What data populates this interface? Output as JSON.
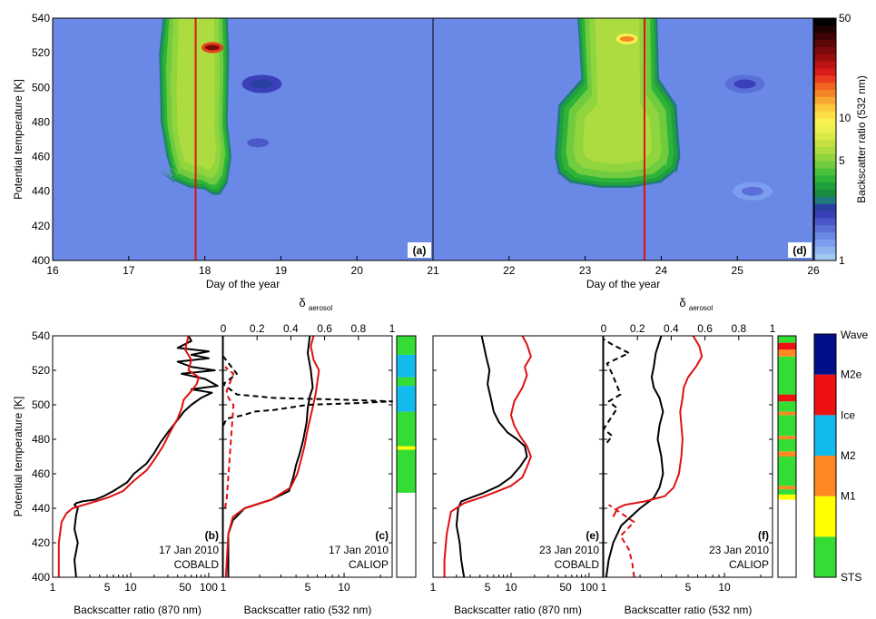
{
  "chart_data": [
    {
      "panel": "(a)",
      "type": "heatmap",
      "xlabel": "Day of the year",
      "ylabel": "Potential temperature [K]",
      "xlim": [
        16,
        21
      ],
      "ylim": [
        400,
        540
      ],
      "xticks": [
        "16",
        "17",
        "18",
        "19",
        "20",
        "21"
      ],
      "yticks": [
        "400",
        "420",
        "440",
        "460",
        "480",
        "500",
        "520",
        "540"
      ],
      "marker_line_day": 17.88,
      "background_ratio": 1.5,
      "plume": {
        "bottom_K": [
          [
            17.4,
            452
          ],
          [
            17.6,
            446
          ],
          [
            17.8,
            442
          ],
          [
            18.0,
            441
          ],
          [
            18.1,
            438
          ],
          [
            18.2,
            438
          ],
          [
            18.4,
            452
          ]
        ],
        "left_day": [
          [
            540,
            17.45
          ],
          [
            520,
            17.4
          ],
          [
            480,
            17.42
          ],
          [
            460,
            17.5
          ],
          [
            445,
            17.6
          ]
        ],
        "right_day": [
          [
            540,
            18.3
          ],
          [
            520,
            18.32
          ],
          [
            480,
            18.3
          ],
          [
            460,
            18.35
          ],
          [
            445,
            18.3
          ]
        ],
        "core_ratio": 6,
        "hot_spot": {
          "day": 18.1,
          "K": 523,
          "ratio": 30
        }
      },
      "secondary_features": [
        {
          "day": 18.75,
          "K": 502,
          "ratio": 2.5
        },
        {
          "day": 18.7,
          "K": 468,
          "ratio": 1.8
        }
      ]
    },
    {
      "panel": "(d)",
      "type": "heatmap",
      "xlabel": "Day of the year",
      "xlim": [
        21,
        26
      ],
      "ylim": [
        400,
        540
      ],
      "xticks": [
        "22",
        "23",
        "24",
        "25",
        "26"
      ],
      "marker_line_day": 23.78,
      "background_ratio": 1.5,
      "plume": {
        "bottom_K": [
          [
            22.6,
            452
          ],
          [
            22.8,
            445
          ],
          [
            23.2,
            442
          ],
          [
            23.6,
            442
          ],
          [
            24.0,
            445
          ],
          [
            24.2,
            452
          ]
        ],
        "left_day": [
          [
            540,
            22.9
          ],
          [
            505,
            22.95
          ],
          [
            490,
            22.65
          ],
          [
            460,
            22.6
          ],
          [
            450,
            22.65
          ]
        ],
        "right_day": [
          [
            540,
            23.95
          ],
          [
            505,
            23.97
          ],
          [
            490,
            24.2
          ],
          [
            460,
            24.25
          ],
          [
            450,
            24.2
          ]
        ],
        "core_ratio": 6,
        "hot_spot": {
          "day": 23.55,
          "K": 528,
          "ratio": 15
        }
      },
      "secondary_features": [
        {
          "day": 25.1,
          "K": 502,
          "ratio": 2.2
        },
        {
          "day": 25.2,
          "K": 440,
          "ratio": 1.7
        }
      ]
    },
    {
      "panel": "colorbar",
      "type": "heatmap",
      "label": "Backscatter ratio (532 nm)",
      "scale": "log",
      "range": [
        1,
        50
      ],
      "ticks": [
        "1",
        "5",
        "10",
        "50"
      ],
      "colors": [
        "#a0c8f0",
        "#8eb4f0",
        "#7c9ef0",
        "#6a88e6",
        "#5a70d8",
        "#4a58c8",
        "#3a40b8",
        "#2a40a0",
        "#1f7a7e",
        "#1a8c3e",
        "#1fa03a",
        "#2eb33a",
        "#4cc23c",
        "#70cc3e",
        "#90d43e",
        "#acdc40",
        "#c6e242",
        "#dcea48",
        "#eef050",
        "#f8f050",
        "#fce046",
        "#fcc83c",
        "#f8a632",
        "#f48628",
        "#f06422",
        "#ea3c1e",
        "#d81c1a",
        "#bc1414",
        "#9c0e0e",
        "#7c0a0a",
        "#5c0606",
        "#3e0404",
        "#200202",
        "#000000"
      ]
    },
    {
      "panel": "(b)",
      "type": "line",
      "xlabel": "Backscatter ratio (870 nm)",
      "ylabel": "Potential temperature [K]",
      "xscale": "log",
      "xlim": [
        1,
        150
      ],
      "ylim": [
        400,
        540
      ],
      "xticks": [
        "1",
        "5",
        "10",
        "50",
        "100"
      ],
      "date": "17 Jan 2010",
      "instrument": "COBALD",
      "series": [
        {
          "color": "#000000",
          "x": [
            2,
            1.9,
            2.1,
            1.9,
            2.0,
            2.1,
            1.9,
            2.0,
            2.4,
            3.5,
            4.5,
            6,
            9,
            11,
            16,
            20,
            24,
            30,
            38,
            48,
            60,
            80,
            110,
            60,
            130,
            90,
            45,
            120,
            60,
            40,
            100,
            60,
            100,
            40,
            60,
            55
          ],
          "y": [
            400,
            410,
            420,
            428,
            436,
            440,
            442,
            443,
            444,
            445,
            447,
            450,
            455,
            460,
            466,
            472,
            478,
            484,
            490,
            496,
            500,
            504,
            507,
            509,
            511,
            515,
            518,
            520,
            522,
            525,
            527,
            529,
            531,
            533,
            537,
            540
          ]
        },
        {
          "color": "#e01010",
          "x": [
            1.2,
            1.2,
            1.3,
            1.5,
            1.8,
            3,
            5,
            8,
            11,
            16,
            20,
            26,
            32,
            40,
            45,
            48,
            60,
            70,
            75,
            55,
            60,
            50,
            55
          ],
          "y": [
            400,
            420,
            432,
            437,
            440,
            443,
            446,
            450,
            456,
            462,
            468,
            476,
            484,
            492,
            498,
            503,
            508,
            512,
            516,
            520,
            526,
            532,
            540
          ]
        }
      ]
    },
    {
      "panel": "(c)",
      "type": "line",
      "xlabel": "Backscatter ratio (532 nm)",
      "top_label": "δ",
      "top_label_sub": "aerosol",
      "xscale": "log",
      "xlim": [
        1,
        25
      ],
      "ylim": [
        400,
        540
      ],
      "xticks": [
        "1",
        "5",
        "10"
      ],
      "top_xlim": [
        0,
        1
      ],
      "top_xticks": [
        "0",
        "0.2",
        "0.4",
        "0.6",
        "0.8",
        "1"
      ],
      "date": "17 Jan 2010",
      "instrument": "CALIOP",
      "series": [
        {
          "color": "#000000",
          "axis": "bottom",
          "x": [
            1.1,
            1.1,
            1.2,
            1.5,
            2.5,
            3.5,
            3.8,
            4.0,
            4.3,
            4.6,
            4.9,
            5.0,
            5.2,
            5.5,
            5.3,
            5.0,
            5.2
          ],
          "y": [
            400,
            425,
            433,
            440,
            445,
            450,
            458,
            465,
            472,
            480,
            490,
            498,
            505,
            510,
            520,
            530,
            540
          ]
        },
        {
          "color": "#e01010",
          "axis": "bottom",
          "x": [
            1.05,
            1.1,
            1.2,
            1.5,
            2.5,
            3.6,
            4.1,
            4.4,
            4.7,
            5.0,
            5.4,
            5.8,
            6.2,
            5.6,
            5.3,
            5.6
          ],
          "y": [
            400,
            425,
            435,
            440,
            445,
            452,
            460,
            468,
            476,
            486,
            496,
            506,
            520,
            526,
            534,
            540
          ]
        },
        {
          "color": "#000000",
          "axis": "top",
          "dashed": true,
          "x": [
            0.0,
            0.02,
            0.12,
            0.18,
            0.3,
            0.5,
            0.8,
            1.0,
            0.7,
            0.3,
            0.08,
            0.0,
            0.08,
            0.0
          ],
          "y": [
            488,
            492,
            494,
            496,
            497,
            500,
            501,
            502,
            503,
            504,
            506,
            512,
            518,
            528
          ]
        },
        {
          "color": "#e01010",
          "axis": "top",
          "dashed": true,
          "x": [
            0.01,
            0.02,
            0.06,
            0.03,
            0.02,
            0.06,
            0.01
          ],
          "y": [
            440,
            445,
            500,
            504,
            508,
            518,
            522
          ]
        }
      ],
      "classification_strip": [
        {
          "from": 400,
          "to": 449,
          "cls": "none"
        },
        {
          "from": 449,
          "to": 474,
          "cls": "STS"
        },
        {
          "from": 474,
          "to": 476,
          "cls": "M1"
        },
        {
          "from": 476,
          "to": 496,
          "cls": "STS"
        },
        {
          "from": 496,
          "to": 511,
          "cls": "Ice"
        },
        {
          "from": 511,
          "to": 516,
          "cls": "STS"
        },
        {
          "from": 516,
          "to": 529,
          "cls": "Ice"
        },
        {
          "from": 529,
          "to": 540,
          "cls": "STS"
        }
      ]
    },
    {
      "panel": "(e)",
      "type": "line",
      "xlabel": "Backscatter ratio (870 nm)",
      "xscale": "log",
      "xlim": [
        1,
        150
      ],
      "ylim": [
        400,
        540
      ],
      "xticks": [
        "1",
        "5",
        "10",
        "50",
        "100"
      ],
      "date": "23 Jan 2010",
      "instrument": "COBALD",
      "series": [
        {
          "color": "#000000",
          "x": [
            2.5,
            2.3,
            2.2,
            2.0,
            2.1,
            2.3,
            3.0,
            4.5,
            7,
            10,
            13,
            16,
            15,
            12,
            9,
            7,
            6,
            5.5,
            5,
            5.3,
            4.8,
            4.5,
            4.2
          ],
          "y": [
            400,
            410,
            420,
            430,
            440,
            444,
            446,
            449,
            453,
            458,
            464,
            470,
            476,
            480,
            484,
            490,
            496,
            504,
            512,
            520,
            528,
            534,
            540
          ]
        },
        {
          "color": "#e01010",
          "x": [
            1.4,
            1.4,
            1.5,
            1.7,
            2.5,
            4,
            6,
            10,
            14,
            16,
            18,
            16,
            13,
            11,
            10,
            11,
            14,
            16,
            15,
            18,
            16,
            14
          ],
          "y": [
            400,
            410,
            425,
            438,
            443,
            446,
            449,
            453,
            458,
            464,
            470,
            476,
            482,
            488,
            494,
            502,
            510,
            517,
            522,
            528,
            535,
            540
          ]
        }
      ]
    },
    {
      "panel": "(f)",
      "type": "line",
      "xlabel": "Backscatter ratio (532 nm)",
      "top_label": "δ",
      "top_label_sub": "aerosol",
      "xscale": "log",
      "xlim": [
        1,
        25
      ],
      "ylim": [
        400,
        540
      ],
      "xticks": [
        "1",
        "5",
        "10"
      ],
      "top_xlim": [
        0,
        1
      ],
      "top_xticks": [
        "0",
        "0.2",
        "0.4",
        "0.6",
        "0.8",
        "1"
      ],
      "date": "23 Jan 2010",
      "instrument": "CALIOP",
      "series": [
        {
          "color": "#000000",
          "axis": "bottom",
          "x": [
            1.05,
            1.1,
            1.2,
            1.4,
            2.0,
            2.6,
            2.9,
            3.1,
            3.0,
            2.8,
            2.9,
            3.1,
            2.9,
            2.6,
            2.5,
            2.6,
            2.7,
            3.0
          ],
          "y": [
            400,
            410,
            420,
            430,
            440,
            446,
            452,
            460,
            470,
            480,
            488,
            496,
            504,
            510,
            516,
            522,
            530,
            540
          ]
        },
        {
          "color": "#e01010",
          "axis": "bottom",
          "x": [
            1.2,
            1.3,
            1.5,
            2.2,
            3.2,
            3.8,
            4.2,
            4.4,
            4.5,
            4.4,
            4.3,
            4.5,
            4.6,
            5.0,
            5.8,
            6.5,
            6.2,
            5.5
          ],
          "y": [
            435,
            440,
            442,
            444,
            447,
            452,
            460,
            470,
            480,
            488,
            496,
            504,
            510,
            516,
            522,
            528,
            534,
            540
          ]
        },
        {
          "color": "#000000",
          "axis": "top",
          "dashed": true,
          "x": [
            0.02,
            0.05,
            0.0,
            0.08,
            0.03,
            0.1,
            0.05,
            0.02,
            0.15,
            0.05,
            0.0
          ],
          "y": [
            478,
            482,
            486,
            498,
            502,
            506,
            518,
            524,
            530,
            535,
            538
          ]
        },
        {
          "color": "#e01010",
          "axis": "top",
          "dashed": true,
          "x": [
            0.18,
            0.17,
            0.15,
            0.1,
            0.18,
            0.06,
            0.03
          ],
          "y": [
            400,
            408,
            416,
            424,
            432,
            440,
            442
          ]
        }
      ],
      "classification_strip": [
        {
          "from": 400,
          "to": 445,
          "cls": "none"
        },
        {
          "from": 445,
          "to": 448,
          "cls": "M1"
        },
        {
          "from": 448,
          "to": 451,
          "cls": "STS"
        },
        {
          "from": 451,
          "to": 453,
          "cls": "M2"
        },
        {
          "from": 453,
          "to": 470,
          "cls": "STS"
        },
        {
          "from": 470,
          "to": 473,
          "cls": "M2"
        },
        {
          "from": 473,
          "to": 480,
          "cls": "STS"
        },
        {
          "from": 480,
          "to": 482,
          "cls": "M2"
        },
        {
          "from": 482,
          "to": 494,
          "cls": "STS"
        },
        {
          "from": 494,
          "to": 496,
          "cls": "M2"
        },
        {
          "from": 496,
          "to": 502,
          "cls": "STS"
        },
        {
          "from": 502,
          "to": 506,
          "cls": "M2e"
        },
        {
          "from": 506,
          "to": 528,
          "cls": "STS"
        },
        {
          "from": 528,
          "to": 532,
          "cls": "M2"
        },
        {
          "from": 532,
          "to": 536,
          "cls": "M2e"
        },
        {
          "from": 536,
          "to": 540,
          "cls": "STS"
        }
      ]
    },
    {
      "panel": "class_legend",
      "type": "heatmap",
      "classes": [
        {
          "name": "STS",
          "color": "#33dd33"
        },
        {
          "name": "M1",
          "color": "#ffff00"
        },
        {
          "name": "M2",
          "color": "#ff8822"
        },
        {
          "name": "Ice",
          "color": "#11bbee"
        },
        {
          "name": "M2e",
          "color": "#ee1111"
        },
        {
          "name": "Wave",
          "color": "#001088"
        }
      ]
    }
  ]
}
